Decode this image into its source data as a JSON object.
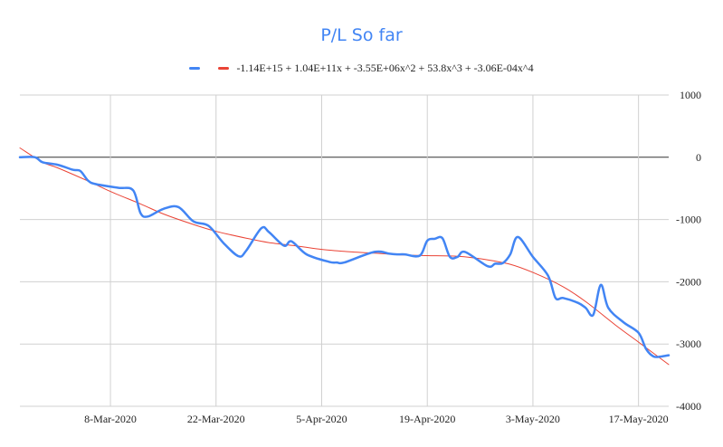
{
  "chart_data": {
    "type": "line",
    "title": "P/L So far",
    "xlabel": "",
    "ylabel": "",
    "x_tick_labels": [
      "8-Mar-2020",
      "22-Mar-2020",
      "5-Apr-2020",
      "19-Apr-2020",
      "3-May-2020",
      "17-May-2020"
    ],
    "y_tick_labels": [
      "1000",
      "0",
      "-1000",
      "-2000",
      "-3000",
      "-4000"
    ],
    "x_ticks": [
      "2020-03-08",
      "2020-03-22",
      "2020-04-05",
      "2020-04-19",
      "2020-05-03",
      "2020-05-17"
    ],
    "y_ticks": [
      1000,
      0,
      -1000,
      -2000,
      -3000,
      -4000
    ],
    "xlim": [
      "2020-02-25",
      "2020-05-21"
    ],
    "ylim": [
      -4000,
      1000
    ],
    "y_axis_position": "right",
    "grid": true,
    "zero_line": true,
    "legend_position": "top",
    "series": [
      {
        "name": "",
        "color": "#4285f4",
        "x": [
          "2020-02-25",
          "2020-02-27",
          "2020-02-28",
          "2020-03-01",
          "2020-03-03",
          "2020-03-04",
          "2020-03-05",
          "2020-03-06",
          "2020-03-09",
          "2020-03-11",
          "2020-03-12",
          "2020-03-13",
          "2020-03-15",
          "2020-03-17",
          "2020-03-19",
          "2020-03-21",
          "2020-03-23",
          "2020-03-25",
          "2020-03-26",
          "2020-03-28",
          "2020-03-29",
          "2020-03-31",
          "2020-04-01",
          "2020-04-03",
          "2020-04-06",
          "2020-04-07",
          "2020-04-08",
          "2020-04-12",
          "2020-04-14",
          "2020-04-15",
          "2020-04-16",
          "2020-04-18",
          "2020-04-19",
          "2020-04-20",
          "2020-04-21",
          "2020-04-22",
          "2020-04-23",
          "2020-04-24",
          "2020-04-27",
          "2020-04-28",
          "2020-04-29",
          "2020-04-30",
          "2020-05-01",
          "2020-05-03",
          "2020-05-05",
          "2020-05-06",
          "2020-05-07",
          "2020-05-09",
          "2020-05-10",
          "2020-05-11",
          "2020-05-12",
          "2020-05-13",
          "2020-05-15",
          "2020-05-17",
          "2020-05-18",
          "2020-05-19",
          "2020-05-20",
          "2020-05-21"
        ],
        "y": [
          0,
          0,
          -80,
          -120,
          -200,
          -220,
          -370,
          -430,
          -490,
          -530,
          -900,
          -950,
          -830,
          -800,
          -1030,
          -1100,
          -1380,
          -1590,
          -1500,
          -1140,
          -1200,
          -1420,
          -1350,
          -1560,
          -1680,
          -1690,
          -1690,
          -1520,
          -1550,
          -1560,
          -1560,
          -1580,
          -1340,
          -1310,
          -1300,
          -1600,
          -1600,
          -1520,
          -1750,
          -1710,
          -1700,
          -1560,
          -1280,
          -1600,
          -1900,
          -2260,
          -2260,
          -2340,
          -2420,
          -2530,
          -2050,
          -2420,
          -2650,
          -2820,
          -3080,
          -3200,
          -3200,
          -3180
        ]
      },
      {
        "name": "-1.14E+15 + 1.04E+11x + -3.55E+06x^2 + 53.8x^3 + -3.06E-04x^4",
        "color": "#ea4335",
        "x": [
          "2020-02-25",
          "2020-02-28",
          "2020-03-01",
          "2020-03-05",
          "2020-03-08",
          "2020-03-12",
          "2020-03-15",
          "2020-03-19",
          "2020-03-22",
          "2020-03-26",
          "2020-03-29",
          "2020-04-02",
          "2020-04-05",
          "2020-04-09",
          "2020-04-12",
          "2020-04-16",
          "2020-04-19",
          "2020-04-23",
          "2020-04-26",
          "2020-04-30",
          "2020-05-03",
          "2020-05-07",
          "2020-05-10",
          "2020-05-14",
          "2020-05-17",
          "2020-05-21"
        ],
        "y": [
          150,
          -80,
          -170,
          -380,
          -550,
          -750,
          -910,
          -1080,
          -1190,
          -1300,
          -1370,
          -1430,
          -1480,
          -1520,
          -1540,
          -1570,
          -1580,
          -1590,
          -1630,
          -1720,
          -1850,
          -2080,
          -2320,
          -2700,
          -2970,
          -3330
        ]
      }
    ]
  }
}
